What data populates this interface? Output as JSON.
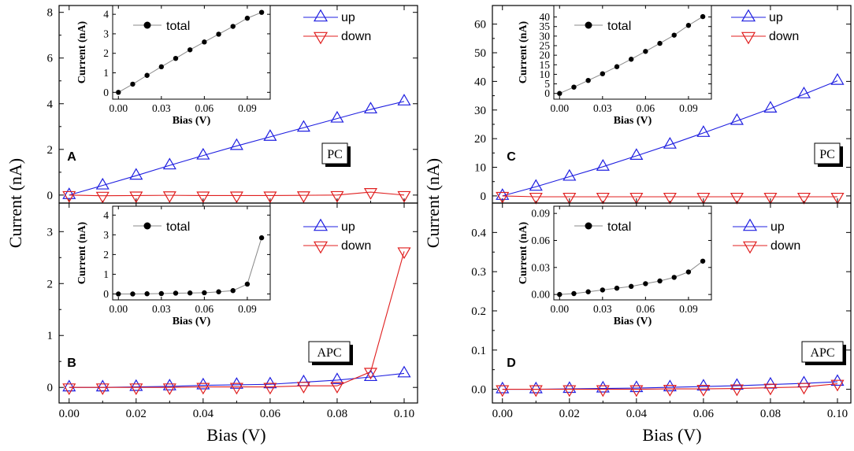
{
  "figure": {
    "ylabel": "Current (nA)",
    "xlabel": "Bias (V)",
    "colors": {
      "up": "#1f1fe0",
      "down": "#e01f1f",
      "total": "#000000",
      "axis": "#000000",
      "inset_line": "#8a8a8a"
    }
  },
  "chart_data": [
    {
      "id": "A",
      "type": "line",
      "panel_label": "A",
      "box_label": "PC",
      "x": [
        0,
        0.01,
        0.02,
        0.03,
        0.04,
        0.05,
        0.06,
        0.07,
        0.08,
        0.09,
        0.1
      ],
      "series": [
        {
          "name": "up",
          "marker": "triangle-up",
          "values": [
            0,
            0.42,
            0.85,
            1.3,
            1.73,
            2.15,
            2.55,
            2.95,
            3.35,
            3.75,
            4.1
          ]
        },
        {
          "name": "down",
          "marker": "triangle-down",
          "values": [
            0,
            -0.03,
            -0.02,
            -0.01,
            -0.02,
            -0.02,
            -0.02,
            -0.01,
            0,
            0.13,
            0
          ]
        }
      ],
      "ylim": [
        -0.35,
        8.3
      ],
      "yticks": [
        0,
        2,
        4,
        6,
        8
      ],
      "xlim": [
        -0.003,
        0.104
      ],
      "xticks": [
        0,
        0.02,
        0.04,
        0.06,
        0.08,
        0.1
      ],
      "xticklabels": [
        "0.00",
        "0.02",
        "0.04",
        "0.06",
        "0.08",
        "0.10"
      ],
      "show_xticklabels": false,
      "inset": {
        "type": "line",
        "legend": "total",
        "xlabel": "Bias (V)",
        "ylabel": "Current (nA)",
        "x": [
          0,
          0.01,
          0.02,
          0.03,
          0.04,
          0.05,
          0.06,
          0.07,
          0.08,
          0.09,
          0.1
        ],
        "values": [
          0,
          0.42,
          0.87,
          1.31,
          1.74,
          2.18,
          2.58,
          2.98,
          3.38,
          3.8,
          4.1
        ],
        "xlim": [
          -0.004,
          0.106
        ],
        "xticks": [
          0,
          0.03,
          0.06,
          0.09
        ],
        "xticklabels": [
          "0.00",
          "0.03",
          "0.06",
          "0.09"
        ],
        "ylim": [
          -0.35,
          4.45
        ],
        "yticks": [
          0,
          1,
          2,
          3,
          4
        ]
      }
    },
    {
      "id": "B",
      "type": "line",
      "panel_label": "B",
      "box_label": "APC",
      "x": [
        0,
        0.01,
        0.02,
        0.03,
        0.04,
        0.05,
        0.06,
        0.07,
        0.08,
        0.09,
        0.1
      ],
      "series": [
        {
          "name": "up",
          "marker": "triangle-up",
          "values": [
            0,
            0,
            0.01,
            0.02,
            0.04,
            0.05,
            0.06,
            0.1,
            0.14,
            0.2,
            0.27
          ]
        },
        {
          "name": "down",
          "marker": "triangle-down",
          "values": [
            0,
            0,
            0,
            0,
            0.01,
            0.01,
            0.01,
            0.03,
            0.03,
            0.3,
            2.62
          ]
        }
      ],
      "ylim": [
        -0.3,
        3.55
      ],
      "yticks": [
        0,
        1,
        2,
        3
      ],
      "xlim": [
        -0.003,
        0.104
      ],
      "xticks": [
        0,
        0.02,
        0.04,
        0.06,
        0.08,
        0.1
      ],
      "xticklabels": [
        "0.00",
        "0.02",
        "0.04",
        "0.06",
        "0.08",
        "0.10"
      ],
      "show_xticklabels": true,
      "inset": {
        "type": "line",
        "legend": "total",
        "xlabel": "Bias (V)",
        "ylabel": "Current (nA)",
        "x": [
          0,
          0.01,
          0.02,
          0.03,
          0.04,
          0.05,
          0.06,
          0.07,
          0.08,
          0.09,
          0.1
        ],
        "values": [
          0,
          0,
          0.01,
          0.02,
          0.04,
          0.05,
          0.06,
          0.11,
          0.17,
          0.5,
          2.85
        ],
        "xlim": [
          -0.004,
          0.106
        ],
        "xticks": [
          0,
          0.03,
          0.06,
          0.09
        ],
        "xticklabels": [
          "0.00",
          "0.03",
          "0.06",
          "0.09"
        ],
        "ylim": [
          -0.3,
          4.45
        ],
        "yticks": [
          0,
          1,
          2,
          3,
          4
        ]
      }
    },
    {
      "id": "C",
      "type": "line",
      "panel_label": "C",
      "box_label": "PC",
      "x": [
        0,
        0.01,
        0.02,
        0.03,
        0.04,
        0.05,
        0.06,
        0.07,
        0.08,
        0.09,
        0.1
      ],
      "series": [
        {
          "name": "up",
          "marker": "triangle-up",
          "values": [
            0,
            3.2,
            6.7,
            10.2,
            14,
            17.9,
            22,
            26.2,
            30.5,
            35.5,
            40.2
          ]
        },
        {
          "name": "down",
          "marker": "triangle-down",
          "values": [
            0,
            -0.3,
            -0.3,
            -0.3,
            -0.3,
            -0.3,
            -0.3,
            -0.3,
            -0.3,
            -0.3,
            -0.3
          ]
        }
      ],
      "ylim": [
        -2.5,
        66.5
      ],
      "yticks": [
        0,
        10,
        20,
        30,
        40,
        50,
        60
      ],
      "xlim": [
        -0.003,
        0.104
      ],
      "xticks": [
        0,
        0.02,
        0.04,
        0.06,
        0.08,
        0.1
      ],
      "xticklabels": [
        "0.00",
        "0.02",
        "0.04",
        "0.06",
        "0.08",
        "0.10"
      ],
      "show_xticklabels": false,
      "inset": {
        "type": "line",
        "legend": "total",
        "xlabel": "Bias (V)",
        "ylabel": "Current (nA)",
        "x": [
          0,
          0.01,
          0.02,
          0.03,
          0.04,
          0.05,
          0.06,
          0.07,
          0.08,
          0.09,
          0.1
        ],
        "values": [
          0,
          3.3,
          6.8,
          10.3,
          14,
          17.9,
          22,
          26.2,
          30.5,
          35.6,
          40.2
        ],
        "xlim": [
          -0.004,
          0.106
        ],
        "xticks": [
          0,
          0.03,
          0.06,
          0.09
        ],
        "xticklabels": [
          "0.00",
          "0.03",
          "0.06",
          "0.09"
        ],
        "ylim": [
          -3,
          46
        ],
        "yticks": [
          0,
          5,
          10,
          15,
          20,
          25,
          30,
          35,
          40
        ]
      }
    },
    {
      "id": "D",
      "type": "line",
      "panel_label": "D",
      "box_label": "APC",
      "x": [
        0,
        0.01,
        0.02,
        0.03,
        0.04,
        0.05,
        0.06,
        0.07,
        0.08,
        0.09,
        0.1
      ],
      "series": [
        {
          "name": "up",
          "marker": "triangle-up",
          "values": [
            0,
            0,
            0.001,
            0.002,
            0.003,
            0.005,
            0.007,
            0.009,
            0.012,
            0.015,
            0.019
          ]
        },
        {
          "name": "down",
          "marker": "triangle-down",
          "values": [
            0,
            0,
            0,
            0,
            0,
            0.001,
            0.001,
            0.002,
            0.004,
            0.006,
            0.014
          ]
        }
      ],
      "ylim": [
        -0.035,
        0.475
      ],
      "yticks": [
        0,
        0.1,
        0.2,
        0.3,
        0.4
      ],
      "yticklabels": [
        "0.0",
        "0.1",
        "0.2",
        "0.3",
        "0.4"
      ],
      "xlim": [
        -0.003,
        0.104
      ],
      "xticks": [
        0,
        0.02,
        0.04,
        0.06,
        0.08,
        0.1
      ],
      "xticklabels": [
        "0.00",
        "0.02",
        "0.04",
        "0.06",
        "0.08",
        "0.10"
      ],
      "show_xticklabels": true,
      "inset": {
        "type": "line",
        "legend": "total",
        "xlabel": "Bias (V)",
        "ylabel": "Current (nA)",
        "x": [
          0,
          0.01,
          0.02,
          0.03,
          0.04,
          0.05,
          0.06,
          0.07,
          0.08,
          0.09,
          0.1
        ],
        "values": [
          0,
          0.001,
          0.003,
          0.005,
          0.007,
          0.009,
          0.012,
          0.015,
          0.019,
          0.025,
          0.037
        ],
        "xlim": [
          -0.004,
          0.106
        ],
        "xticks": [
          0,
          0.03,
          0.06,
          0.09
        ],
        "xticklabels": [
          "0.00",
          "0.03",
          "0.06",
          "0.09"
        ],
        "ylim": [
          -0.006,
          0.098
        ],
        "yticks": [
          0,
          0.03,
          0.06,
          0.09
        ],
        "yticklabels": [
          "0.00",
          "0.03",
          "0.06",
          "0.09"
        ]
      }
    }
  ]
}
